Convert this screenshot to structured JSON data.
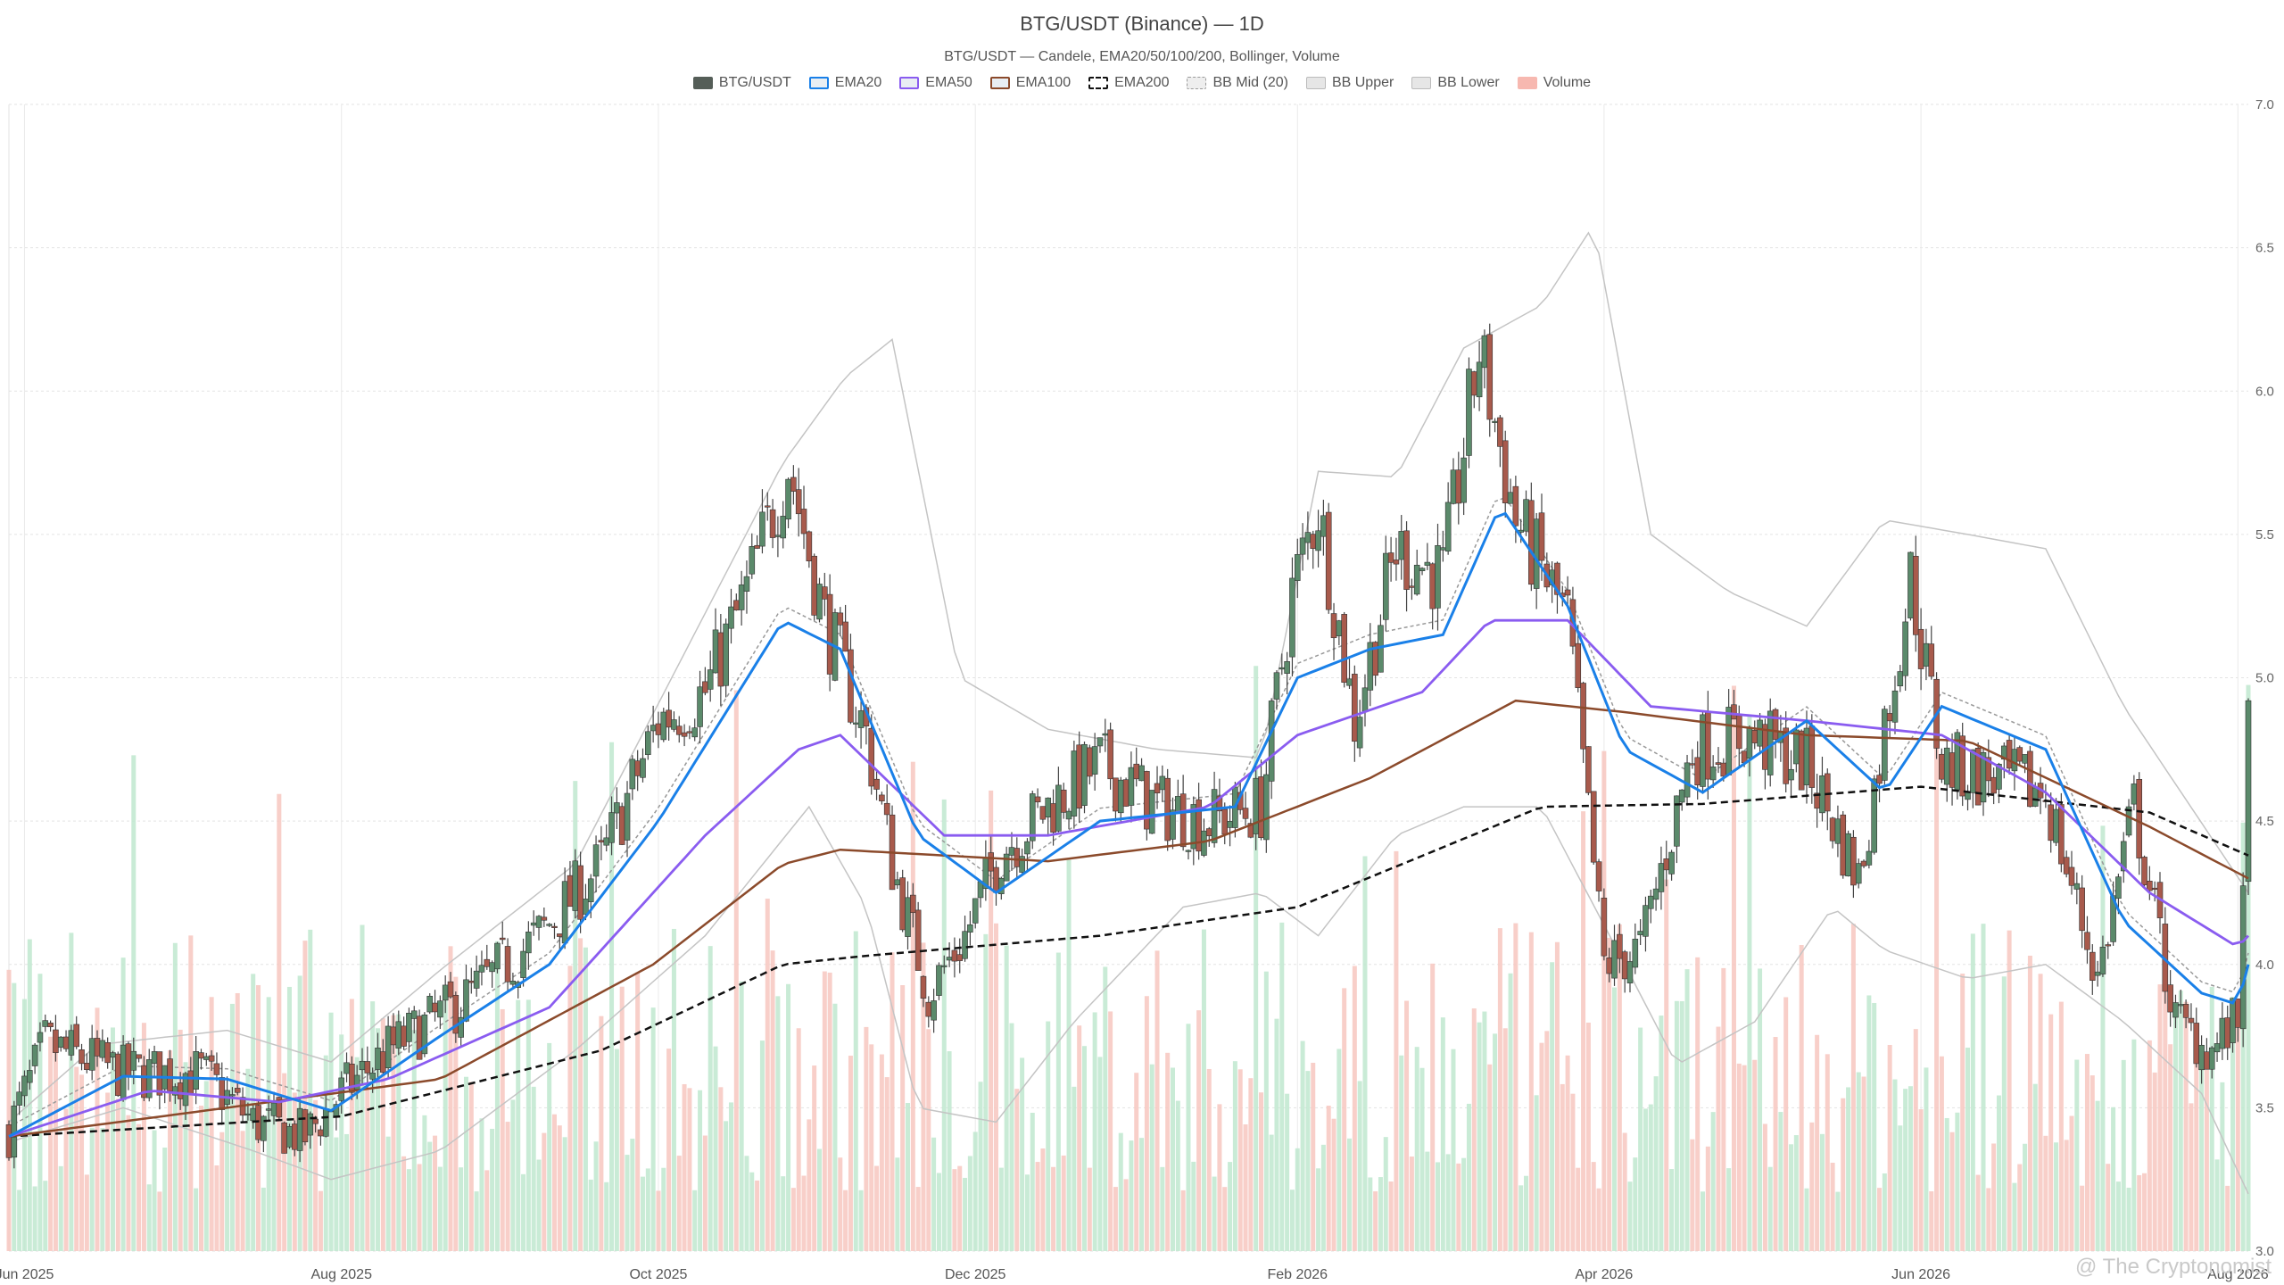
{
  "chart_data": {
    "type": "candlestick",
    "title": "BTG/USDT (Binance) — 1D",
    "subtitle": "BTG/USDT — Candele, EMA20/50/100/200, Bollinger, Volume",
    "legend": [
      {
        "label": "BTG/USDT",
        "color": "#555e58",
        "style": "solid-fill"
      },
      {
        "label": "EMA20",
        "color": "#1a80e8",
        "style": "line"
      },
      {
        "label": "EMA50",
        "color": "#8a5cf0",
        "style": "line"
      },
      {
        "label": "EMA100",
        "color": "#8b4a2b",
        "style": "line"
      },
      {
        "label": "EMA200",
        "color": "#111111",
        "style": "dashed"
      },
      {
        "label": "BB Mid (20)",
        "color": "#999999",
        "style": "dotted"
      },
      {
        "label": "BB Upper",
        "color": "#bbbbbb",
        "style": "band"
      },
      {
        "label": "BB Lower",
        "color": "#bbbbbb",
        "style": "band"
      },
      {
        "label": "Volume",
        "color": "#f7b8b0",
        "style": "fill"
      }
    ],
    "x_tick_labels": [
      "Jun 2025",
      "Aug 2025",
      "Oct 2025",
      "Dec 2025",
      "Feb 2026",
      "Apr 2026",
      "Jun 2026",
      "Aug 2026"
    ],
    "y_tick_labels": [
      "7.0",
      "6.5",
      "6.0",
      "5.5",
      "5.0",
      "4.5",
      "4.0",
      "3.5",
      "3.0"
    ],
    "ylim": [
      3.0,
      7.0
    ],
    "x_range": [
      "2025-05-29",
      "2026-08-03"
    ],
    "y_axis_side": "right",
    "grid": true,
    "legend_placement": "top-center",
    "colors": {
      "up": "#5b8a6b",
      "down": "#a85a4c",
      "vol_up": "#bfe8cf",
      "vol_down": "#f7c7c0"
    },
    "close_anchors": [
      [
        "2025-05-29",
        3.42
      ],
      [
        "2025-06-05",
        3.72
      ],
      [
        "2025-06-20",
        3.62
      ],
      [
        "2025-07-05",
        3.62
      ],
      [
        "2025-07-15",
        3.45
      ],
      [
        "2025-07-25",
        3.4
      ],
      [
        "2025-08-01",
        3.55
      ],
      [
        "2025-08-10",
        3.7
      ],
      [
        "2025-08-25",
        3.88
      ],
      [
        "2025-09-08",
        4.1
      ],
      [
        "2025-09-20",
        4.35
      ],
      [
        "2025-10-01",
        4.85
      ],
      [
        "2025-10-10",
        4.95
      ],
      [
        "2025-10-18",
        5.3
      ],
      [
        "2025-10-26",
        5.75
      ],
      [
        "2025-11-02",
        5.2
      ],
      [
        "2025-11-10",
        4.8
      ],
      [
        "2025-11-15",
        4.35
      ],
      [
        "2025-11-22",
        3.9
      ],
      [
        "2025-11-29",
        4.1
      ],
      [
        "2025-12-06",
        4.4
      ],
      [
        "2025-12-15",
        4.55
      ],
      [
        "2025-12-25",
        4.7
      ],
      [
        "2026-01-05",
        4.55
      ],
      [
        "2026-01-15",
        4.5
      ],
      [
        "2026-01-25",
        4.55
      ],
      [
        "2026-01-31",
        5.3
      ],
      [
        "2026-02-05",
        5.6
      ],
      [
        "2026-02-12",
        4.85
      ],
      [
        "2026-02-20",
        5.45
      ],
      [
        "2026-03-01",
        5.35
      ],
      [
        "2026-03-08",
        6.15
      ],
      [
        "2026-03-15",
        5.55
      ],
      [
        "2026-03-25",
        5.2
      ],
      [
        "2026-04-01",
        4.0
      ],
      [
        "2026-04-08",
        4.05
      ],
      [
        "2026-04-18",
        4.75
      ],
      [
        "2026-04-28",
        4.8
      ],
      [
        "2026-05-10",
        4.7
      ],
      [
        "2026-05-20",
        4.3
      ],
      [
        "2026-05-30",
        5.35
      ],
      [
        "2026-06-05",
        4.7
      ],
      [
        "2026-06-15",
        4.65
      ],
      [
        "2026-06-25",
        4.6
      ],
      [
        "2026-07-05",
        3.95
      ],
      [
        "2026-07-12",
        4.55
      ],
      [
        "2026-07-20",
        3.8
      ],
      [
        "2026-07-27",
        3.7
      ],
      [
        "2026-08-01",
        3.8
      ],
      [
        "2026-08-03",
        4.92
      ]
    ],
    "ema20_anchors": [
      [
        "2025-05-29",
        3.4
      ],
      [
        "2025-06-20",
        3.61
      ],
      [
        "2025-07-10",
        3.6
      ],
      [
        "2025-07-30",
        3.49
      ],
      [
        "2025-08-20",
        3.75
      ],
      [
        "2025-09-10",
        4.0
      ],
      [
        "2025-10-01",
        4.5
      ],
      [
        "2025-10-25",
        5.2
      ],
      [
        "2025-11-05",
        5.1
      ],
      [
        "2025-11-20",
        4.45
      ],
      [
        "2025-12-05",
        4.25
      ],
      [
        "2025-12-25",
        4.5
      ],
      [
        "2026-01-20",
        4.55
      ],
      [
        "2026-02-01",
        5.0
      ],
      [
        "2026-02-15",
        5.1
      ],
      [
        "2026-03-01",
        5.15
      ],
      [
        "2026-03-12",
        5.6
      ],
      [
        "2026-03-25",
        5.25
      ],
      [
        "2026-04-05",
        4.75
      ],
      [
        "2026-04-20",
        4.6
      ],
      [
        "2026-05-10",
        4.85
      ],
      [
        "2026-05-25",
        4.6
      ],
      [
        "2026-06-05",
        4.9
      ],
      [
        "2026-06-25",
        4.75
      ],
      [
        "2026-07-10",
        4.15
      ],
      [
        "2026-07-25",
        3.9
      ],
      [
        "2026-08-01",
        3.86
      ],
      [
        "2026-08-03",
        4.0
      ]
    ],
    "ema50_anchors": [
      [
        "2025-05-29",
        3.4
      ],
      [
        "2025-06-25",
        3.56
      ],
      [
        "2025-07-20",
        3.52
      ],
      [
        "2025-08-10",
        3.6
      ],
      [
        "2025-09-10",
        3.85
      ],
      [
        "2025-10-10",
        4.45
      ],
      [
        "2025-10-28",
        4.75
      ],
      [
        "2025-11-05",
        4.8
      ],
      [
        "2025-11-25",
        4.45
      ],
      [
        "2025-12-15",
        4.45
      ],
      [
        "2026-01-15",
        4.55
      ],
      [
        "2026-02-01",
        4.8
      ],
      [
        "2026-02-25",
        4.95
      ],
      [
        "2026-03-10",
        5.2
      ],
      [
        "2026-03-25",
        5.2
      ],
      [
        "2026-04-10",
        4.9
      ],
      [
        "2026-05-10",
        4.85
      ],
      [
        "2026-06-05",
        4.8
      ],
      [
        "2026-06-25",
        4.6
      ],
      [
        "2026-07-15",
        4.25
      ],
      [
        "2026-08-01",
        4.06
      ],
      [
        "2026-08-03",
        4.1
      ]
    ],
    "ema100_anchors": [
      [
        "2025-05-29",
        3.4
      ],
      [
        "2025-07-10",
        3.5
      ],
      [
        "2025-08-20",
        3.6
      ],
      [
        "2025-09-30",
        4.0
      ],
      [
        "2025-10-25",
        4.35
      ],
      [
        "2025-11-05",
        4.4
      ],
      [
        "2025-12-15",
        4.36
      ],
      [
        "2026-01-15",
        4.43
      ],
      [
        "2026-02-15",
        4.65
      ],
      [
        "2026-03-15",
        4.92
      ],
      [
        "2026-04-05",
        4.88
      ],
      [
        "2026-05-10",
        4.8
      ],
      [
        "2026-06-10",
        4.78
      ],
      [
        "2026-07-15",
        4.48
      ],
      [
        "2026-08-03",
        4.3
      ]
    ],
    "ema200_anchors": [
      [
        "2025-05-29",
        3.4
      ],
      [
        "2025-08-01",
        3.47
      ],
      [
        "2025-09-20",
        3.7
      ],
      [
        "2025-10-25",
        4.0
      ],
      [
        "2025-11-10",
        4.03
      ],
      [
        "2025-12-25",
        4.1
      ],
      [
        "2026-02-01",
        4.2
      ],
      [
        "2026-03-20",
        4.55
      ],
      [
        "2026-04-20",
        4.56
      ],
      [
        "2026-06-01",
        4.62
      ],
      [
        "2026-07-15",
        4.53
      ],
      [
        "2026-08-03",
        4.38
      ]
    ],
    "bb_upper_anchors": [
      [
        "2025-05-29",
        3.45
      ],
      [
        "2025-06-15",
        3.72
      ],
      [
        "2025-07-10",
        3.77
      ],
      [
        "2025-07-30",
        3.66
      ],
      [
        "2025-08-20",
        3.98
      ],
      [
        "2025-09-15",
        4.35
      ],
      [
        "2025-10-05",
        5.05
      ],
      [
        "2025-10-25",
        5.75
      ],
      [
        "2025-11-06",
        6.05
      ],
      [
        "2025-11-15",
        6.18
      ],
      [
        "2025-11-28",
        5.0
      ],
      [
        "2025-12-15",
        4.82
      ],
      [
        "2026-01-05",
        4.75
      ],
      [
        "2026-01-25",
        4.72
      ],
      [
        "2026-02-05",
        5.72
      ],
      [
        "2026-02-20",
        5.7
      ],
      [
        "2026-03-05",
        6.15
      ],
      [
        "2026-03-20",
        6.3
      ],
      [
        "2026-03-30",
        6.58
      ],
      [
        "2026-04-10",
        5.5
      ],
      [
        "2026-04-25",
        5.3
      ],
      [
        "2026-05-10",
        5.18
      ],
      [
        "2026-05-25",
        5.55
      ],
      [
        "2026-06-10",
        5.5
      ],
      [
        "2026-06-25",
        5.45
      ],
      [
        "2026-07-10",
        4.9
      ],
      [
        "2026-08-03",
        4.25
      ]
    ],
    "bb_lower_anchors": [
      [
        "2025-05-29",
        3.38
      ],
      [
        "2025-06-20",
        3.5
      ],
      [
        "2025-07-15",
        3.35
      ],
      [
        "2025-07-30",
        3.25
      ],
      [
        "2025-08-20",
        3.35
      ],
      [
        "2025-09-15",
        3.7
      ],
      [
        "2025-10-10",
        4.1
      ],
      [
        "2025-10-30",
        4.55
      ],
      [
        "2025-11-10",
        4.2
      ],
      [
        "2025-11-20",
        3.5
      ],
      [
        "2025-12-05",
        3.45
      ],
      [
        "2025-12-20",
        3.8
      ],
      [
        "2026-01-10",
        4.2
      ],
      [
        "2026-01-25",
        4.25
      ],
      [
        "2026-02-05",
        4.1
      ],
      [
        "2026-02-20",
        4.45
      ],
      [
        "2026-03-05",
        4.55
      ],
      [
        "2026-03-20",
        4.55
      ],
      [
        "2026-04-05",
        4.0
      ],
      [
        "2026-04-15",
        3.65
      ],
      [
        "2026-04-30",
        3.8
      ],
      [
        "2026-05-15",
        4.2
      ],
      [
        "2026-05-25",
        4.05
      ],
      [
        "2026-06-10",
        3.95
      ],
      [
        "2026-06-25",
        4.0
      ],
      [
        "2026-07-10",
        3.8
      ],
      [
        "2026-07-25",
        3.55
      ],
      [
        "2026-08-03",
        3.2
      ]
    ],
    "volume_max_hint": "relative 0..1 bar heights, scale 0..~0.43 of plot height"
  },
  "watermark": "@ The Cryptonomist"
}
